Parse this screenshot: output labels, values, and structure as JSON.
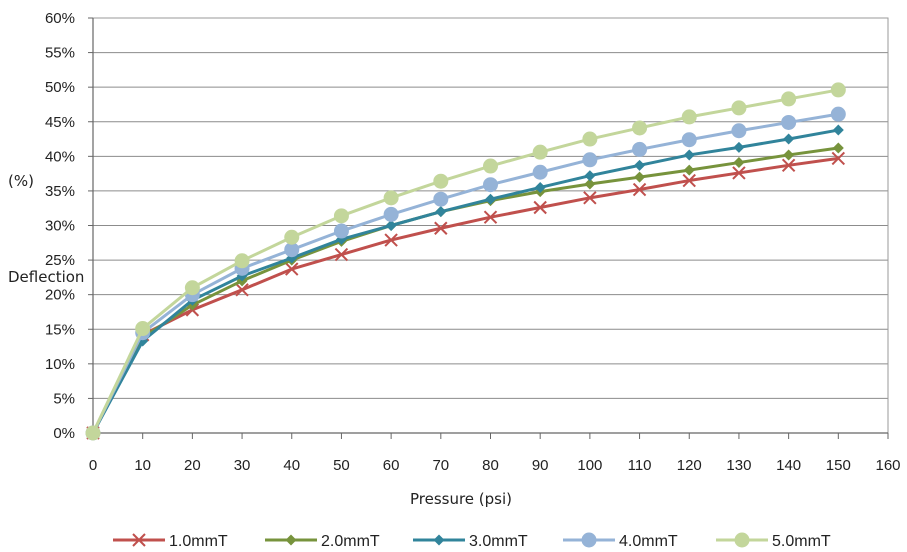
{
  "chart_data": {
    "type": "line",
    "ylabel_top": "(%)",
    "ylabel": "Deflection",
    "xlabel": "Pressure (psi)",
    "xlim": [
      0,
      160
    ],
    "ylim": [
      0,
      60
    ],
    "xticks": [
      0,
      10,
      20,
      30,
      40,
      50,
      60,
      70,
      80,
      90,
      100,
      110,
      120,
      130,
      140,
      150,
      160
    ],
    "yticks": [
      0,
      5,
      10,
      15,
      20,
      25,
      30,
      35,
      40,
      45,
      50,
      55,
      60
    ],
    "x": [
      0,
      10,
      20,
      30,
      40,
      50,
      60,
      70,
      80,
      90,
      100,
      110,
      120,
      130,
      140,
      150
    ],
    "grid": "horizontal",
    "legend_position": "bottom",
    "series": [
      {
        "name": "1.0mmT",
        "color": "#c0504d",
        "marker": "x",
        "values": [
          0,
          14.2,
          17.8,
          20.7,
          23.7,
          25.8,
          27.9,
          29.6,
          31.2,
          32.6,
          34.0,
          35.2,
          36.5,
          37.6,
          38.7,
          39.7
        ]
      },
      {
        "name": "2.0mmT",
        "color": "#77933c",
        "marker": "diamond",
        "values": [
          0,
          13.8,
          18.5,
          22.0,
          25.0,
          27.7,
          30.0,
          32.0,
          33.6,
          34.9,
          36.0,
          37.0,
          38.0,
          39.1,
          40.2,
          41.2
        ]
      },
      {
        "name": "3.0mmT",
        "color": "#31849b",
        "marker": "diamond",
        "values": [
          0,
          13.3,
          19.2,
          22.7,
          25.3,
          28.0,
          30.0,
          32.0,
          33.8,
          35.5,
          37.2,
          38.7,
          40.2,
          41.3,
          42.5,
          43.8
        ]
      },
      {
        "name": "4.0mmT",
        "color": "#95b3d7",
        "marker": "circle",
        "values": [
          0,
          14.5,
          20.0,
          23.8,
          26.5,
          29.2,
          31.6,
          33.8,
          35.9,
          37.7,
          39.5,
          41.0,
          42.4,
          43.7,
          44.9,
          46.1
        ]
      },
      {
        "name": "5.0mmT",
        "color": "#c3d69b",
        "marker": "circle",
        "values": [
          0,
          15.1,
          21.0,
          24.9,
          28.3,
          31.4,
          34.0,
          36.4,
          38.6,
          40.6,
          42.5,
          44.1,
          45.7,
          47.0,
          48.3,
          49.6
        ]
      }
    ]
  }
}
